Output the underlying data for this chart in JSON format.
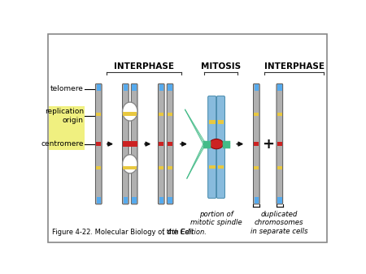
{
  "background_color": "#f0f0e8",
  "border_color": "#888888",
  "title_interphase1": "INTERPHASE",
  "title_mitosis": "MITOSIS",
  "title_interphase2": "INTERPHASE",
  "label_telomere": "telomere",
  "label_replication": "replication\norigin",
  "label_centromere": "centromere",
  "label_spindle": "portion of\nmitotic spindle",
  "label_duplicated": "duplicated\nchromosomes\nin separate cells",
  "color_chromosome_body": "#b0b0b0",
  "color_telomere": "#55aaee",
  "color_replication_origin": "#e8c840",
  "color_centromere": "#cc2222",
  "color_kinetochore": "#44bb88",
  "color_chromosome_mitosis": "#88bbdd",
  "color_label_bg": "#f0f080",
  "arrow_color": "#111111",
  "plus_color": "#111111"
}
